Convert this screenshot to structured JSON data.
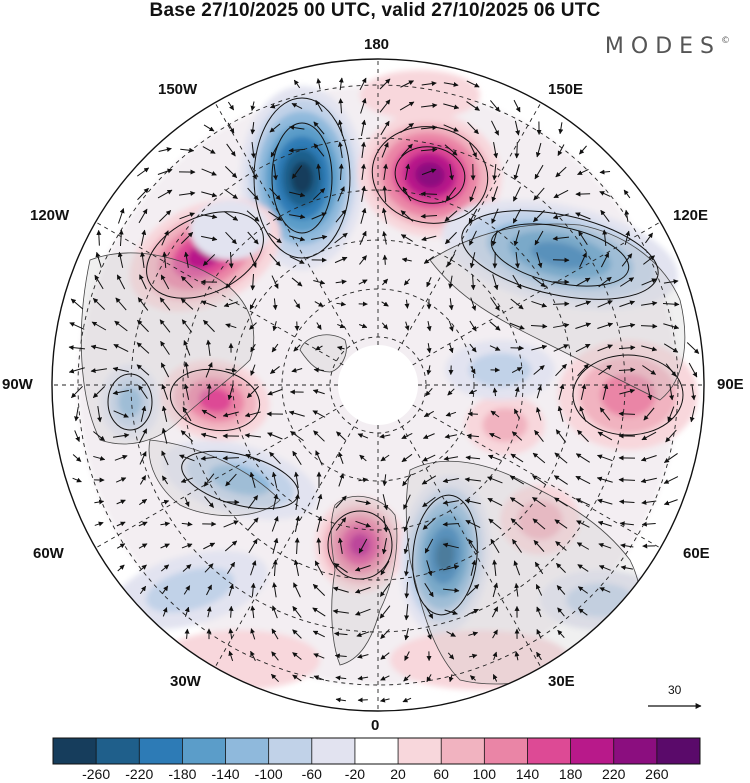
{
  "title": "Base 27/10/2025 00 UTC, valid 27/10/2025 06 UTC",
  "brand": {
    "name": "MODES",
    "mark": "©"
  },
  "longitude_labels": {
    "top": "180",
    "bottom": "0",
    "left": "90W",
    "right": "90E",
    "upper_left_1": "150W",
    "upper_left_2": "120W",
    "upper_right_1": "150E",
    "upper_right_2": "120E",
    "lower_left_1": "60W",
    "lower_left_2": "30W",
    "lower_right_1": "60E",
    "lower_right_2": "30E"
  },
  "vector_reference": {
    "value": "30"
  },
  "colorbar": {
    "tick_labels": [
      "-260",
      "-220",
      "-180",
      "-140",
      "-100",
      "-60",
      "-20",
      "20",
      "60",
      "100",
      "140",
      "180",
      "220",
      "260"
    ],
    "colors": [
      "#163d5c",
      "#1f5f8b",
      "#2d7bb6",
      "#5b9dc9",
      "#8fb9dc",
      "#c1d2e8",
      "#e2e3f0",
      "#ffffff",
      "#f8d7dc",
      "#f1b3c0",
      "#ea85a6",
      "#dd4a95",
      "#b8198a",
      "#8b0e7f",
      "#5a0a6a"
    ]
  },
  "chart_data": {
    "type": "heatmap",
    "title": "Base 27/10/2025 00 UTC, valid 27/10/2025 06 UTC",
    "projection": "north polar stereographic",
    "field_range": [
      -260,
      260
    ],
    "anomaly_centers": [
      {
        "near": "150W-180, mid latitudes",
        "sign": "negative",
        "peak": -260
      },
      {
        "near": "165E-180, mid latitudes",
        "sign": "positive",
        "peak": 240
      },
      {
        "near": "120W",
        "sign": "positive",
        "peak": 220
      },
      {
        "near": "110E-130E",
        "sign": "negative",
        "peak": -180
      },
      {
        "near": "90W, high latitudes",
        "sign": "positive",
        "peak": 180
      },
      {
        "near": "90W, lower latitudes",
        "sign": "negative",
        "peak": -140
      },
      {
        "near": "90E, lower latitudes",
        "sign": "positive",
        "peak": 120
      },
      {
        "near": "15W",
        "sign": "positive",
        "peak": 180
      },
      {
        "near": "20E",
        "sign": "negative",
        "peak": -200
      },
      {
        "near": "60E-70E",
        "sign": "positive",
        "peak": 100
      },
      {
        "near": "60W-75W",
        "sign": "negative",
        "peak": -100
      }
    ]
  }
}
